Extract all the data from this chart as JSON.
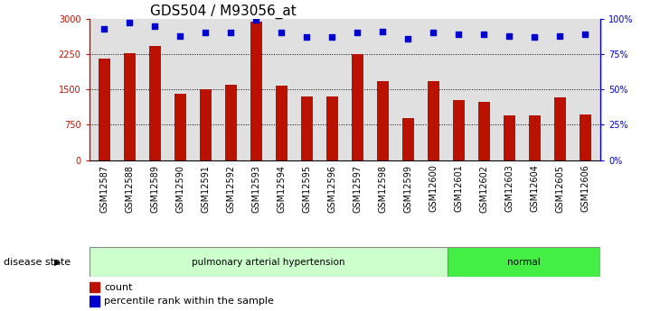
{
  "title": "GDS504 / M93056_at",
  "samples": [
    "GSM12587",
    "GSM12588",
    "GSM12589",
    "GSM12590",
    "GSM12591",
    "GSM12592",
    "GSM12593",
    "GSM12594",
    "GSM12595",
    "GSM12596",
    "GSM12597",
    "GSM12598",
    "GSM12599",
    "GSM12600",
    "GSM12601",
    "GSM12602",
    "GSM12603",
    "GSM12604",
    "GSM12605",
    "GSM12606"
  ],
  "counts": [
    2150,
    2270,
    2430,
    1400,
    1500,
    1590,
    2930,
    1580,
    1360,
    1360,
    2250,
    1670,
    900,
    1680,
    1280,
    1240,
    950,
    940,
    1330,
    970
  ],
  "percentile_ranks": [
    93,
    97,
    95,
    88,
    90,
    90,
    99,
    90,
    87,
    87,
    90,
    91,
    86,
    90,
    89,
    89,
    88,
    87,
    88,
    89
  ],
  "bar_color": "#bb1100",
  "dot_color": "#0000cc",
  "ylim_left": [
    0,
    3000
  ],
  "ylim_right": [
    0,
    100
  ],
  "yticks_left": [
    0,
    750,
    1500,
    2250,
    3000
  ],
  "yticks_right": [
    0,
    25,
    50,
    75,
    100
  ],
  "ytick_labels_left": [
    "0",
    "750",
    "1500",
    "2250",
    "3000"
  ],
  "ytick_labels_right": [
    "0%",
    "25%",
    "50%",
    "75%",
    "100%"
  ],
  "disease_group1_label": "pulmonary arterial hypertension",
  "disease_group1_count": 14,
  "disease_group2_label": "normal",
  "disease_group2_count": 6,
  "disease_state_label": "disease state",
  "legend_count_label": "count",
  "legend_pct_label": "percentile rank within the sample",
  "background_color": "#ffffff",
  "plot_bg_color": "#e0e0e0",
  "group1_bg_color": "#ccffcc",
  "group2_bg_color": "#44ee44",
  "title_fontsize": 11,
  "tick_fontsize": 7,
  "legend_fontsize": 8
}
